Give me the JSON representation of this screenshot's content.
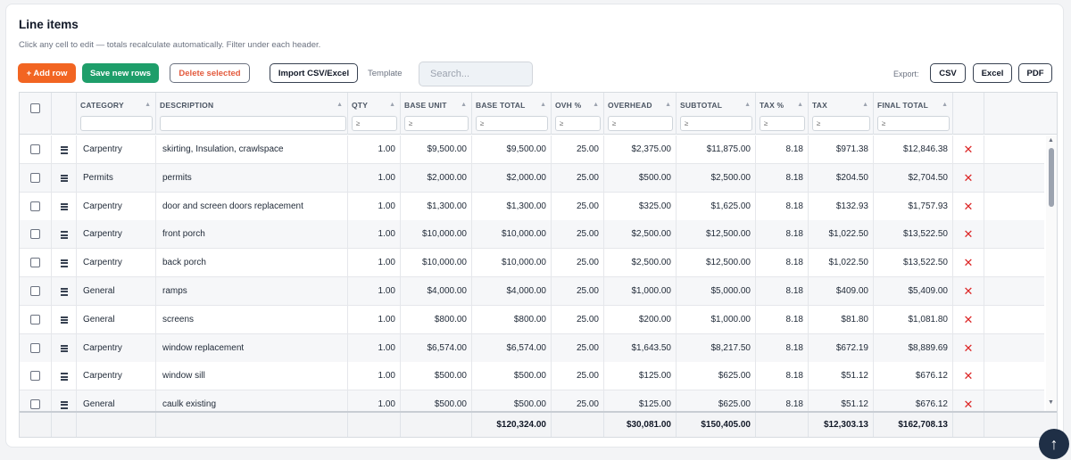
{
  "title": "Line items",
  "subtitle": "Click any cell to edit — totals recalculate automatically. Filter under each header.",
  "toolbar": {
    "add_row": "+ Add row",
    "save_new_rows": "Save new rows",
    "delete_selected": "Delete selected",
    "import": "Import CSV/Excel",
    "template": "Template",
    "search_placeholder": "Search...",
    "export_label": "Export:",
    "csv": "CSV",
    "excel": "Excel",
    "pdf": "PDF"
  },
  "columns": [
    {
      "key": "category",
      "label": "CATEGORY",
      "filter": ""
    },
    {
      "key": "description",
      "label": "DESCRIPTION",
      "filter": ""
    },
    {
      "key": "qty",
      "label": "QTY",
      "filter": "≥"
    },
    {
      "key": "base_unit",
      "label": "BASE UNIT",
      "filter": "≥"
    },
    {
      "key": "base_total",
      "label": "BASE TOTAL",
      "filter": "≥"
    },
    {
      "key": "ovh_pct",
      "label": "OVH %",
      "filter": "≥"
    },
    {
      "key": "overhead",
      "label": "OVERHEAD",
      "filter": "≥"
    },
    {
      "key": "subtotal",
      "label": "SUBTOTAL",
      "filter": "≥"
    },
    {
      "key": "tax_pct",
      "label": "TAX %",
      "filter": "≥"
    },
    {
      "key": "tax",
      "label": "TAX",
      "filter": "≥"
    },
    {
      "key": "final_total",
      "label": "FINAL TOTAL",
      "filter": "≥"
    }
  ],
  "rows": [
    {
      "category": "Carpentry",
      "description": "skirting, Insulation, crawlspace",
      "qty": "1.00",
      "base_unit": "$9,500.00",
      "base_total": "$9,500.00",
      "ovh_pct": "25.00",
      "overhead": "$2,375.00",
      "subtotal": "$11,875.00",
      "tax_pct": "8.18",
      "tax": "$971.38",
      "final_total": "$12,846.38"
    },
    {
      "category": "Permits",
      "description": "permits",
      "qty": "1.00",
      "base_unit": "$2,000.00",
      "base_total": "$2,000.00",
      "ovh_pct": "25.00",
      "overhead": "$500.00",
      "subtotal": "$2,500.00",
      "tax_pct": "8.18",
      "tax": "$204.50",
      "final_total": "$2,704.50"
    },
    {
      "category": "Carpentry",
      "description": "door and screen doors replacement",
      "qty": "1.00",
      "base_unit": "$1,300.00",
      "base_total": "$1,300.00",
      "ovh_pct": "25.00",
      "overhead": "$325.00",
      "subtotal": "$1,625.00",
      "tax_pct": "8.18",
      "tax": "$132.93",
      "final_total": "$1,757.93"
    },
    {
      "category": "Carpentry",
      "description": "front porch",
      "qty": "1.00",
      "base_unit": "$10,000.00",
      "base_total": "$10,000.00",
      "ovh_pct": "25.00",
      "overhead": "$2,500.00",
      "subtotal": "$12,500.00",
      "tax_pct": "8.18",
      "tax": "$1,022.50",
      "final_total": "$13,522.50"
    },
    {
      "category": "Carpentry",
      "description": "back porch",
      "qty": "1.00",
      "base_unit": "$10,000.00",
      "base_total": "$10,000.00",
      "ovh_pct": "25.00",
      "overhead": "$2,500.00",
      "subtotal": "$12,500.00",
      "tax_pct": "8.18",
      "tax": "$1,022.50",
      "final_total": "$13,522.50"
    },
    {
      "category": "General",
      "description": "ramps",
      "qty": "1.00",
      "base_unit": "$4,000.00",
      "base_total": "$4,000.00",
      "ovh_pct": "25.00",
      "overhead": "$1,000.00",
      "subtotal": "$5,000.00",
      "tax_pct": "8.18",
      "tax": "$409.00",
      "final_total": "$5,409.00"
    },
    {
      "category": "General",
      "description": "screens",
      "qty": "1.00",
      "base_unit": "$800.00",
      "base_total": "$800.00",
      "ovh_pct": "25.00",
      "overhead": "$200.00",
      "subtotal": "$1,000.00",
      "tax_pct": "8.18",
      "tax": "$81.80",
      "final_total": "$1,081.80"
    },
    {
      "category": "Carpentry",
      "description": "window replacement",
      "qty": "1.00",
      "base_unit": "$6,574.00",
      "base_total": "$6,574.00",
      "ovh_pct": "25.00",
      "overhead": "$1,643.50",
      "subtotal": "$8,217.50",
      "tax_pct": "8.18",
      "tax": "$672.19",
      "final_total": "$8,889.69"
    },
    {
      "category": "Carpentry",
      "description": "window sill",
      "qty": "1.00",
      "base_unit": "$500.00",
      "base_total": "$500.00",
      "ovh_pct": "25.00",
      "overhead": "$125.00",
      "subtotal": "$625.00",
      "tax_pct": "8.18",
      "tax": "$51.12",
      "final_total": "$676.12"
    },
    {
      "category": "General",
      "description": "caulk existing",
      "qty": "1.00",
      "base_unit": "$500.00",
      "base_total": "$500.00",
      "ovh_pct": "25.00",
      "overhead": "$125.00",
      "subtotal": "$625.00",
      "tax_pct": "8.18",
      "tax": "$51.12",
      "final_total": "$676.12"
    }
  ],
  "totals": {
    "base_total": "$120,324.00",
    "overhead": "$30,081.00",
    "subtotal": "$150,405.00",
    "tax": "$12,303.13",
    "final_total": "$162,708.13"
  },
  "icons": {
    "delete_row": "✕",
    "sort": "▲",
    "scroll_up": "▲",
    "scroll_down": "▼",
    "back_to_top": "↑"
  },
  "colors": {
    "add_row": "#f26522",
    "save": "#1e9e6a",
    "delete": "#e35a3d",
    "row_delete": "#dc2626",
    "fab": "#1f2f46"
  }
}
